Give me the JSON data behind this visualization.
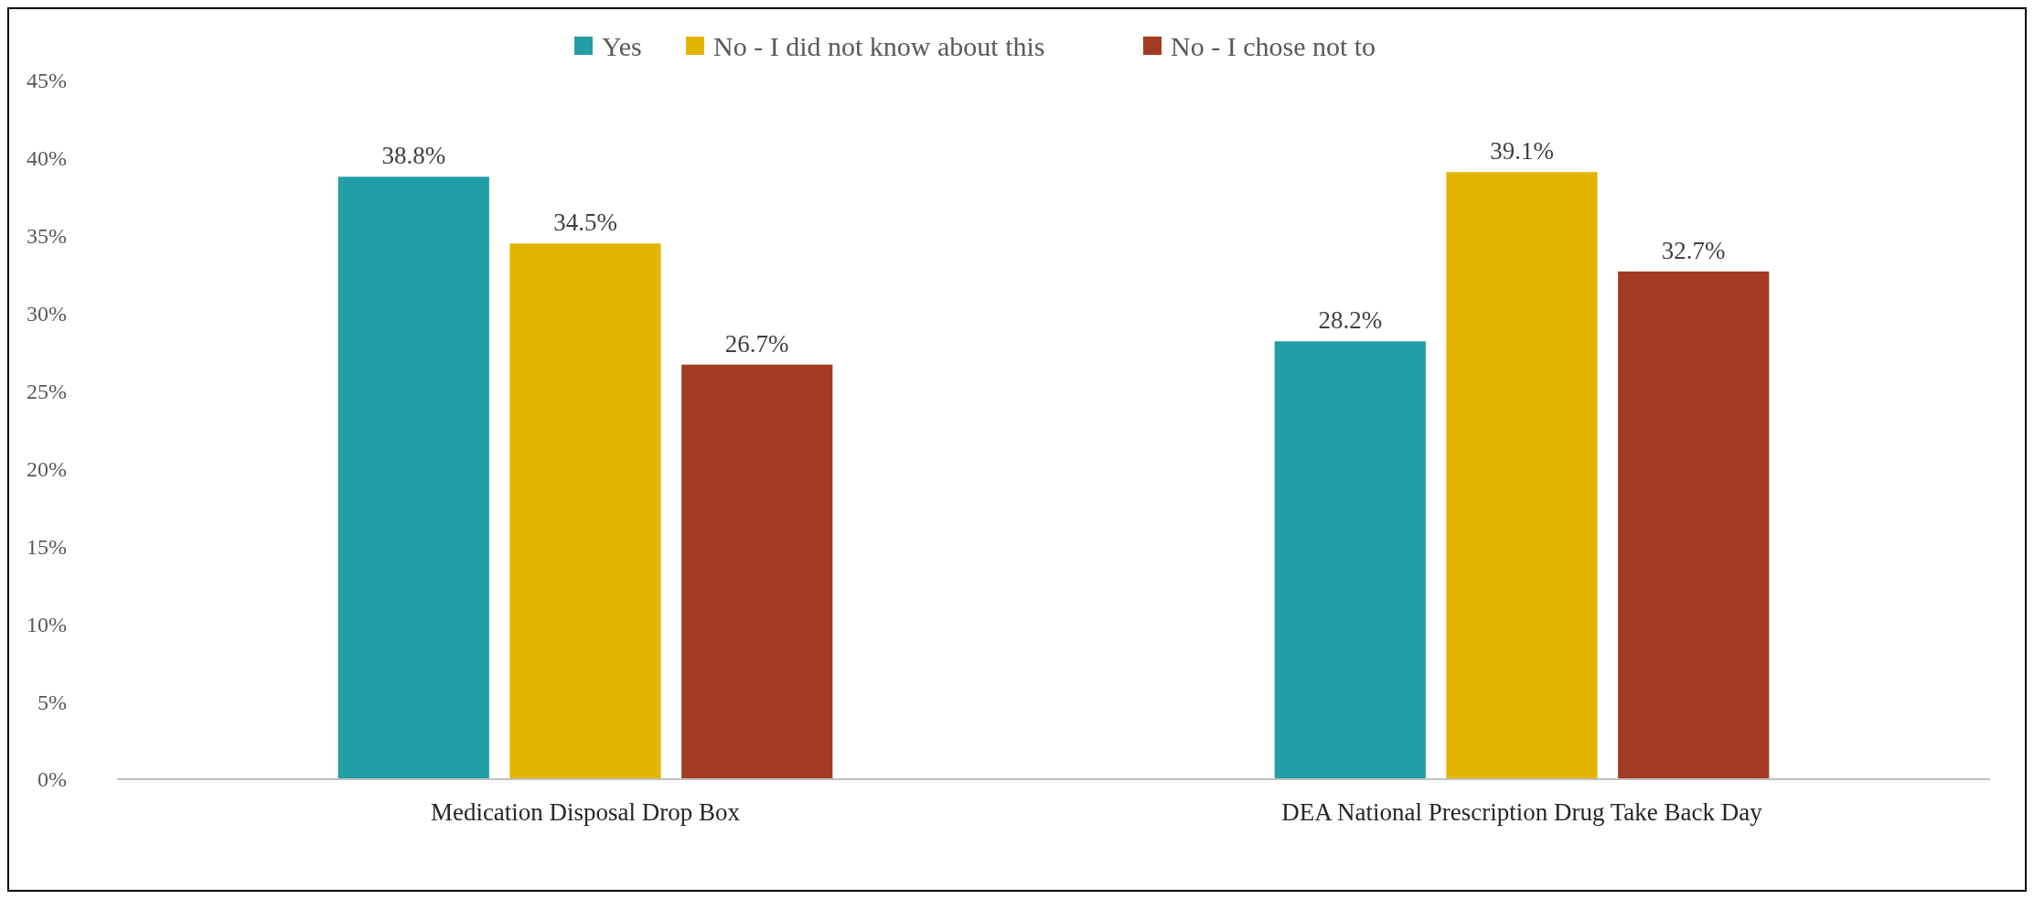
{
  "chart_data": {
    "type": "bar",
    "categories": [
      "Medication Disposal Drop Box",
      "DEA National Prescription Drug Take Back Day"
    ],
    "series": [
      {
        "name": "Yes",
        "color": "#239ea6",
        "values": [
          38.8,
          28.2
        ],
        "value_labels": [
          "38.8%",
          "28.2%"
        ]
      },
      {
        "name": "No - I did not know about this",
        "color": "#e2b502",
        "values": [
          34.5,
          39.1
        ],
        "value_labels": [
          "34.5%",
          "39.1%"
        ]
      },
      {
        "name": "No - I chose not to",
        "color": "#a33b24",
        "values": [
          26.7,
          32.7
        ],
        "value_labels": [
          "26.7%",
          "32.7%"
        ]
      }
    ],
    "ylim": [
      0,
      45
    ],
    "yticks": [
      {
        "value": 0,
        "label": "0%"
      },
      {
        "value": 5,
        "label": "5%"
      },
      {
        "value": 10,
        "label": "10%"
      },
      {
        "value": 15,
        "label": "15%"
      },
      {
        "value": 20,
        "label": "20%"
      },
      {
        "value": 25,
        "label": "25%"
      },
      {
        "value": 30,
        "label": "30%"
      },
      {
        "value": 35,
        "label": "35%"
      },
      {
        "value": 40,
        "label": "40%"
      },
      {
        "value": 45,
        "label": "45%"
      }
    ],
    "grid": false,
    "legend": "top"
  }
}
